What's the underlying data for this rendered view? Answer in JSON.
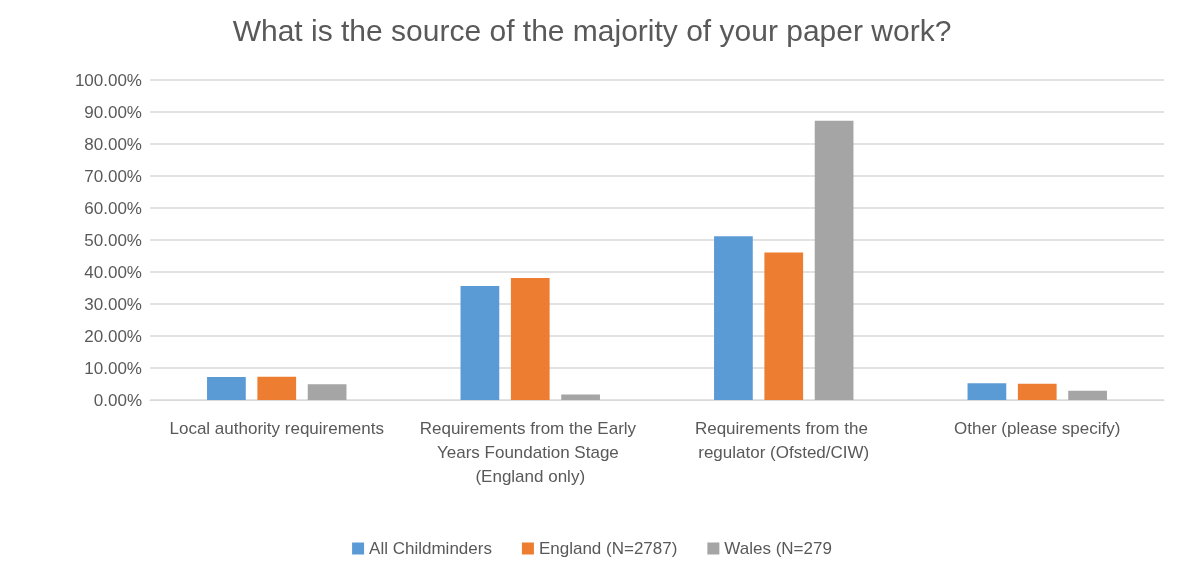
{
  "chart_data": {
    "type": "bar",
    "title": "What is the source of the majority of your paper work?",
    "categories": [
      "Local authority requirements",
      "Requirements from the Early Years Foundation Stage (England only)",
      "Requirements from the regulator (Ofsted/CIW)",
      "Other (please specify)"
    ],
    "series": [
      {
        "name": "All Childminders",
        "color": "#5b9bd5",
        "values": [
          7.2,
          35.6,
          51.2,
          5.2
        ]
      },
      {
        "name": "England (N=2787)",
        "color": "#ed7d31",
        "values": [
          7.3,
          38.1,
          46.1,
          5.1
        ]
      },
      {
        "name": "Wales (N=279",
        "color": "#a5a5a5",
        "values": [
          4.9,
          1.7,
          87.3,
          2.9
        ]
      }
    ],
    "ylim": [
      0,
      100
    ],
    "yticks": [
      {
        "value": 0,
        "label": "0.00%"
      },
      {
        "value": 10,
        "label": "10.00%"
      },
      {
        "value": 20,
        "label": "20.00%"
      },
      {
        "value": 30,
        "label": "30.00%"
      },
      {
        "value": 40,
        "label": "40.00%"
      },
      {
        "value": 50,
        "label": "50.00%"
      },
      {
        "value": 60,
        "label": "60.00%"
      },
      {
        "value": 70,
        "label": "70.00%"
      },
      {
        "value": 80,
        "label": "80.00%"
      },
      {
        "value": 90,
        "label": "90.00%"
      },
      {
        "value": 100,
        "label": "100.00%"
      }
    ],
    "grid": "y",
    "legend": "bottom"
  }
}
